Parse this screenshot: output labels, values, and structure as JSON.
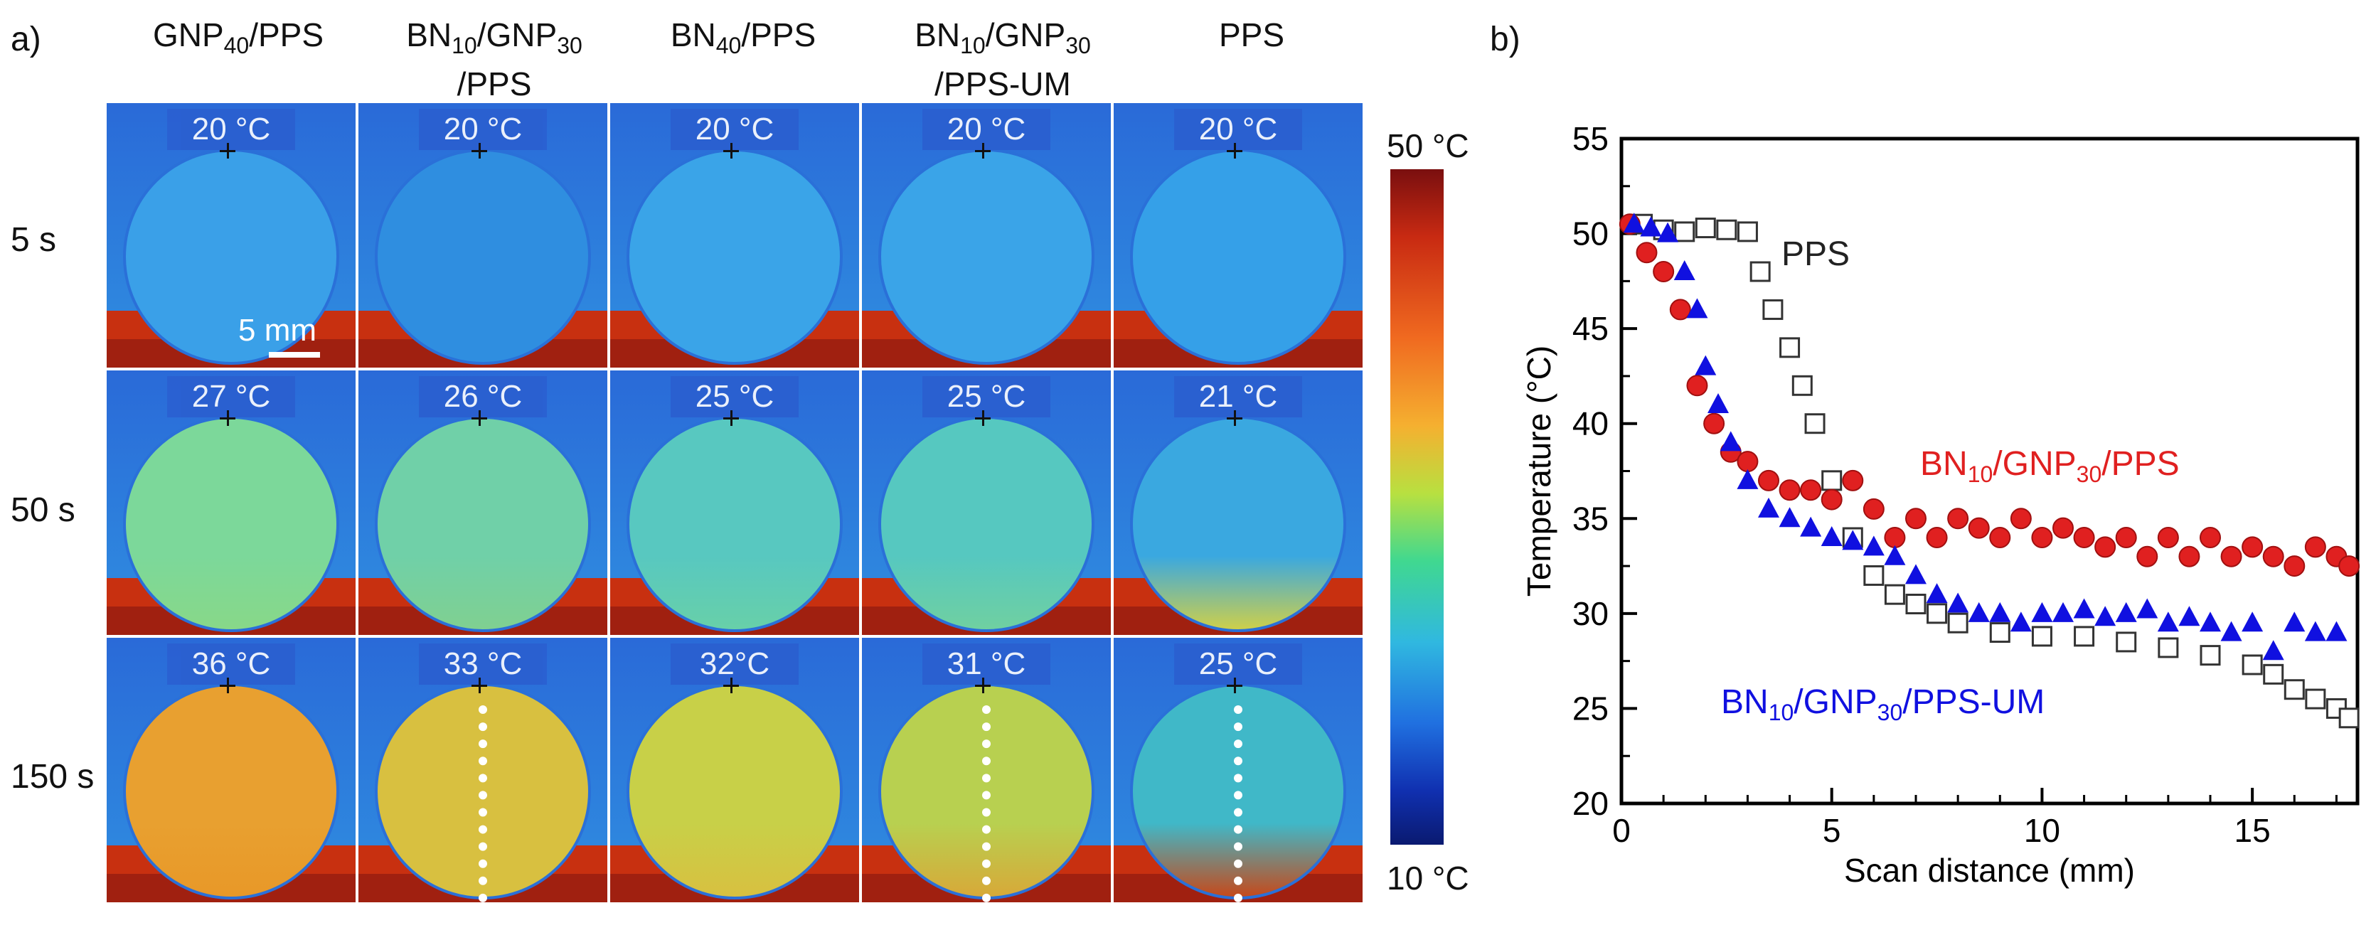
{
  "panel_a": {
    "label": "a)",
    "columns": [
      {
        "main": "GNP",
        "sub": "40",
        "rest": "/PPS",
        "line2": ""
      },
      {
        "main": "BN",
        "sub": "10",
        "rest": "/GNP",
        "sub2": "30",
        "line2": "/PPS"
      },
      {
        "main": "BN",
        "sub": "40",
        "rest": "/PPS",
        "line2": ""
      },
      {
        "main": "BN",
        "sub": "10",
        "rest": "/GNP",
        "sub2": "30",
        "line2": "/PPS-UM"
      },
      {
        "main": "PPS",
        "sub": "",
        "rest": "",
        "line2": ""
      }
    ],
    "rows": [
      "5 s",
      "50 s",
      "150 s"
    ],
    "temps": [
      [
        "20 °C",
        "20 °C",
        "20 °C",
        "20 °C",
        "20 °C"
      ],
      [
        "27 °C",
        "26 °C",
        "25 °C",
        "25 °C",
        "21 °C"
      ],
      [
        "36 °C",
        "33 °C",
        "32°C",
        "31 °C",
        "25 °C"
      ]
    ],
    "scale_bar": "5 mm",
    "colorbar": {
      "max": "50 °C",
      "min": "10 °C"
    },
    "colors": {
      "cold": "#1a4fd8",
      "body5": "#3aa0e0",
      "hot": "#c0281a"
    }
  },
  "panel_b": {
    "label": "b)"
  },
  "chart_data": {
    "type": "scatter",
    "xlabel": "Scan distance (mm)",
    "ylabel": "Temperature (°C)",
    "xlim": [
      0,
      17.5
    ],
    "ylim": [
      20,
      55
    ],
    "xticks": [
      0,
      5,
      10,
      15
    ],
    "yticks": [
      20,
      25,
      30,
      35,
      40,
      45,
      50,
      55
    ],
    "series": [
      {
        "name": "PPS",
        "marker": "square-open",
        "color": "#333333",
        "x": [
          0.5,
          1,
          1.5,
          2,
          2.5,
          3,
          3.3,
          3.6,
          4,
          4.3,
          4.6,
          5,
          5.5,
          6,
          6.5,
          7,
          7.5,
          8,
          9,
          10,
          11,
          12,
          13,
          14,
          15,
          15.5,
          16,
          16.5,
          17,
          17.3
        ],
        "y": [
          50.5,
          50.2,
          50.1,
          50.3,
          50.2,
          50.1,
          48,
          46,
          44,
          42,
          40,
          37,
          34,
          32,
          31,
          30.5,
          30,
          29.5,
          29,
          28.8,
          28.8,
          28.5,
          28.2,
          27.8,
          27.3,
          26.8,
          26,
          25.5,
          25,
          24.5
        ]
      },
      {
        "name": "BN10/GNP30/PPS",
        "label_main": "BN",
        "label_sub1": "10",
        "label_mid": "/GNP",
        "label_sub2": "30",
        "label_end": "/PPS",
        "marker": "circle",
        "color": "#e02020",
        "x": [
          0.2,
          0.6,
          1,
          1.4,
          1.8,
          2.2,
          2.6,
          3,
          3.5,
          4,
          4.5,
          5,
          5.5,
          6,
          6.5,
          7,
          7.5,
          8,
          8.5,
          9,
          9.5,
          10,
          10.5,
          11,
          11.5,
          12,
          12.5,
          13,
          13.5,
          14,
          14.5,
          15,
          15.5,
          16,
          16.5,
          17,
          17.3
        ],
        "y": [
          50.5,
          49,
          48,
          46,
          42,
          40,
          38.5,
          38,
          37,
          36.5,
          36.5,
          36,
          37,
          35.5,
          34,
          35,
          34,
          35,
          34.5,
          34,
          35,
          34,
          34.5,
          34,
          33.5,
          34,
          33,
          34,
          33,
          34,
          33,
          33.5,
          33,
          32.5,
          33.5,
          33,
          32.5
        ]
      },
      {
        "name": "BN10/GNP30/PPS-UM",
        "label_main": "BN",
        "label_sub1": "10",
        "label_mid": "/GNP",
        "label_sub2": "30",
        "label_end": "/PPS-UM",
        "marker": "triangle",
        "color": "#1010e0",
        "x": [
          0.3,
          0.7,
          1.1,
          1.5,
          1.8,
          2,
          2.3,
          2.6,
          3,
          3.5,
          4,
          4.5,
          5,
          5.5,
          6,
          6.5,
          7,
          7.5,
          8,
          8.5,
          9,
          9.5,
          10,
          10.5,
          11,
          11.5,
          12,
          12.5,
          13,
          13.5,
          14,
          14.5,
          15,
          15.5,
          16,
          16.5,
          17
        ],
        "y": [
          50.5,
          50.3,
          50,
          48,
          46,
          43,
          41,
          39,
          37,
          35.5,
          35,
          34.5,
          34,
          33.8,
          33.5,
          33,
          32,
          31,
          30.5,
          30,
          30,
          29.5,
          30,
          30,
          30.2,
          29.8,
          30,
          30.2,
          29.5,
          29.8,
          29.5,
          29,
          29.5,
          28,
          29.5,
          29,
          29
        ]
      }
    ]
  }
}
